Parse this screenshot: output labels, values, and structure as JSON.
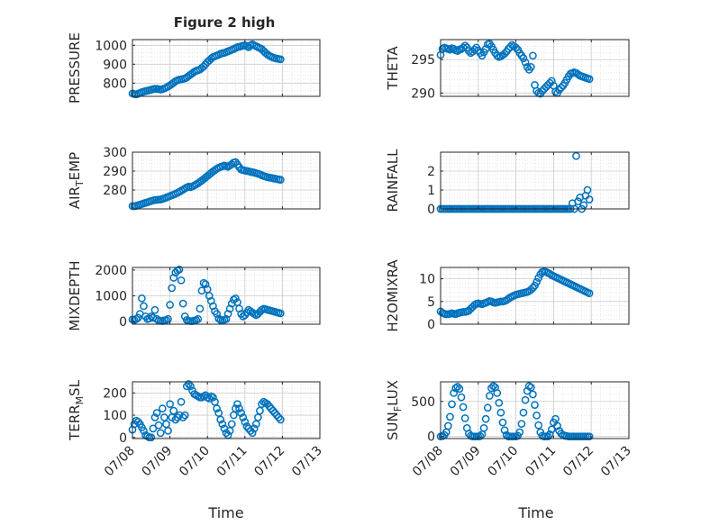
{
  "title": "Figure 2 high",
  "xlabel": "Time",
  "x_ticks": [
    "07/08",
    "07/09",
    "07/10",
    "07/11",
    "07/12",
    "07/13"
  ],
  "chart_data": [
    {
      "type": "scatter",
      "id": "pressure",
      "ylabel": "PRESSURE",
      "grid": true,
      "xlim": [
        0,
        5
      ],
      "ylim": [
        730,
        1030
      ],
      "yticks": [
        800,
        900,
        1000
      ],
      "x": [
        0.0,
        0.05,
        0.1,
        0.15,
        0.2,
        0.25,
        0.3,
        0.35,
        0.4,
        0.45,
        0.5,
        0.55,
        0.6,
        0.65,
        0.7,
        0.75,
        0.8,
        0.85,
        0.9,
        0.95,
        1.0,
        1.05,
        1.1,
        1.15,
        1.2,
        1.25,
        1.3,
        1.35,
        1.4,
        1.45,
        1.5,
        1.55,
        1.6,
        1.65,
        1.7,
        1.75,
        1.8,
        1.85,
        1.9,
        1.95,
        2.0,
        2.05,
        2.1,
        2.15,
        2.2,
        2.25,
        2.3,
        2.35,
        2.4,
        2.45,
        2.5,
        2.55,
        2.6,
        2.65,
        2.7,
        2.75,
        2.8,
        2.85,
        2.9,
        2.95,
        3.0,
        3.05,
        3.1,
        3.15,
        3.2,
        3.25,
        3.3,
        3.35,
        3.4,
        3.45,
        3.5,
        3.55,
        3.6,
        3.65,
        3.7,
        3.75,
        3.8,
        3.85,
        3.9,
        3.95
      ],
      "y": [
        745,
        742,
        740,
        744,
        748,
        752,
        755,
        758,
        760,
        762,
        765,
        768,
        770,
        770,
        768,
        766,
        768,
        772,
        776,
        782,
        788,
        795,
        802,
        810,
        815,
        818,
        820,
        822,
        825,
        830,
        838,
        845,
        852,
        860,
        865,
        868,
        872,
        880,
        888,
        900,
        912,
        920,
        930,
        938,
        942,
        946,
        950,
        955,
        958,
        960,
        964,
        968,
        972,
        976,
        980,
        985,
        990,
        992,
        995,
        998,
        1000,
        995,
        990,
        1000,
        1005,
        1000,
        995,
        990,
        985,
        980,
        970,
        960,
        952,
        945,
        940,
        935,
        932,
        930,
        928,
        926
      ]
    },
    {
      "type": "scatter",
      "id": "theta",
      "ylabel": "THETA",
      "grid": true,
      "xlim": [
        0,
        5
      ],
      "ylim": [
        289.5,
        298
      ],
      "yticks": [
        290,
        295
      ],
      "x": [
        0.0,
        0.05,
        0.1,
        0.15,
        0.2,
        0.25,
        0.3,
        0.35,
        0.4,
        0.45,
        0.5,
        0.55,
        0.6,
        0.65,
        0.7,
        0.75,
        0.8,
        0.85,
        0.9,
        0.95,
        1.0,
        1.05,
        1.1,
        1.15,
        1.2,
        1.25,
        1.3,
        1.35,
        1.4,
        1.45,
        1.5,
        1.55,
        1.6,
        1.65,
        1.7,
        1.75,
        1.8,
        1.85,
        1.9,
        1.95,
        2.0,
        2.05,
        2.1,
        2.15,
        2.2,
        2.25,
        2.3,
        2.35,
        2.4,
        2.45,
        2.5,
        2.55,
        2.6,
        2.65,
        2.7,
        2.75,
        2.8,
        2.85,
        2.9,
        2.95,
        3.0,
        3.05,
        3.1,
        3.15,
        3.2,
        3.25,
        3.3,
        3.35,
        3.4,
        3.45,
        3.5,
        3.55,
        3.6,
        3.65,
        3.7,
        3.75,
        3.8,
        3.85,
        3.9,
        3.95
      ],
      "y": [
        295.7,
        296.6,
        296.8,
        296.7,
        296.6,
        296.5,
        296.7,
        296.6,
        296.4,
        296.3,
        296.5,
        296.6,
        296.8,
        297.1,
        296.8,
        296.3,
        296.0,
        296.2,
        296.5,
        296.8,
        296.4,
        296.0,
        295.6,
        296.1,
        296.6,
        297.3,
        297.4,
        297.0,
        296.5,
        296.0,
        295.6,
        295.4,
        295.5,
        295.7,
        295.9,
        296.2,
        296.6,
        296.9,
        297.2,
        297.0,
        296.8,
        296.5,
        296.0,
        295.6,
        295.2,
        294.6,
        293.9,
        293.5,
        293.9,
        295.6,
        291.2,
        290.3,
        290.0,
        289.9,
        290.3,
        290.6,
        290.9,
        291.2,
        291.5,
        291.8,
        291.1,
        290.2,
        290.0,
        290.5,
        290.8,
        291.1,
        291.5,
        292.0,
        292.5,
        292.9,
        293.0,
        293.1,
        293.0,
        292.8,
        292.6,
        292.5,
        292.4,
        292.3,
        292.2,
        292.1
      ]
    },
    {
      "type": "scatter",
      "id": "air_temp",
      "ylabel": "AIR_TEMP",
      "grid": true,
      "xlim": [
        0,
        5
      ],
      "ylim": [
        270,
        300
      ],
      "yticks": [
        280,
        290,
        300
      ],
      "x": [
        0.0,
        0.05,
        0.1,
        0.15,
        0.2,
        0.25,
        0.3,
        0.35,
        0.4,
        0.45,
        0.5,
        0.55,
        0.6,
        0.65,
        0.7,
        0.75,
        0.8,
        0.85,
        0.9,
        0.95,
        1.0,
        1.05,
        1.1,
        1.15,
        1.2,
        1.25,
        1.3,
        1.35,
        1.4,
        1.45,
        1.5,
        1.55,
        1.6,
        1.65,
        1.7,
        1.75,
        1.8,
        1.85,
        1.9,
        1.95,
        2.0,
        2.05,
        2.1,
        2.15,
        2.2,
        2.25,
        2.3,
        2.35,
        2.4,
        2.45,
        2.5,
        2.55,
        2.6,
        2.65,
        2.7,
        2.75,
        2.8,
        2.85,
        2.9,
        2.95,
        3.0,
        3.05,
        3.1,
        3.15,
        3.2,
        3.25,
        3.3,
        3.35,
        3.4,
        3.45,
        3.5,
        3.55,
        3.6,
        3.65,
        3.7,
        3.75,
        3.8,
        3.85,
        3.9,
        3.95
      ],
      "y": [
        271.5,
        271.4,
        271.6,
        272.0,
        272.3,
        272.6,
        272.9,
        273.2,
        273.5,
        273.9,
        274.2,
        274.5,
        274.7,
        274.8,
        274.9,
        275.0,
        275.3,
        275.6,
        276.0,
        276.4,
        276.8,
        277.2,
        277.6,
        278.0,
        278.5,
        279.0,
        279.6,
        280.2,
        280.8,
        281.4,
        281.8,
        281.5,
        281.9,
        282.4,
        283.0,
        283.6,
        284.3,
        285.0,
        285.8,
        286.6,
        287.4,
        288.2,
        289.0,
        289.8,
        290.5,
        291.2,
        291.8,
        292.2,
        292.6,
        292.9,
        292.6,
        292.3,
        293.0,
        293.6,
        294.5,
        294.8,
        293.5,
        292.0,
        290.8,
        290.5,
        290.3,
        290.1,
        289.9,
        289.6,
        289.4,
        289.2,
        288.9,
        288.6,
        288.3,
        287.8,
        287.4,
        287.1,
        286.8,
        286.6,
        286.4,
        286.2,
        286.0,
        285.8,
        285.6,
        285.4
      ]
    },
    {
      "type": "scatter",
      "id": "rainfall",
      "ylabel": "RAINFALL",
      "grid": true,
      "xlim": [
        0,
        5
      ],
      "ylim": [
        0,
        3
      ],
      "yticks": [
        0,
        1,
        2
      ],
      "x": [
        0.0,
        0.05,
        0.1,
        0.15,
        0.2,
        0.25,
        0.3,
        0.35,
        0.4,
        0.45,
        0.5,
        0.55,
        0.6,
        0.65,
        0.7,
        0.75,
        0.8,
        0.85,
        0.9,
        0.95,
        1.0,
        1.05,
        1.1,
        1.15,
        1.2,
        1.25,
        1.3,
        1.35,
        1.4,
        1.45,
        1.5,
        1.55,
        1.6,
        1.65,
        1.7,
        1.75,
        1.8,
        1.85,
        1.9,
        1.95,
        2.0,
        2.05,
        2.1,
        2.15,
        2.2,
        2.25,
        2.3,
        2.35,
        2.4,
        2.45,
        2.5,
        2.55,
        2.6,
        2.65,
        2.7,
        2.75,
        2.8,
        2.85,
        2.9,
        2.95,
        3.0,
        3.05,
        3.1,
        3.15,
        3.2,
        3.25,
        3.3,
        3.35,
        3.4,
        3.45,
        3.5,
        3.55,
        3.6,
        3.65,
        3.7,
        3.75,
        3.8,
        3.85,
        3.9,
        3.95
      ],
      "y": [
        0,
        0,
        0,
        0,
        0,
        0,
        0,
        0,
        0,
        0,
        0,
        0,
        0,
        0,
        0,
        0,
        0,
        0,
        0,
        0,
        0,
        0,
        0,
        0,
        0,
        0,
        0,
        0,
        0,
        0,
        0,
        0,
        0,
        0,
        0,
        0,
        0,
        0,
        0,
        0,
        0,
        0,
        0,
        0,
        0,
        0,
        0,
        0,
        0,
        0,
        0,
        0,
        0,
        0,
        0,
        0,
        0,
        0,
        0,
        0,
        0,
        0,
        0,
        0,
        0,
        0,
        0,
        0,
        0,
        0,
        0.3,
        0.0,
        2.8,
        0.4,
        0.6,
        0.0,
        0.2,
        0.7,
        1.0,
        0.5
      ]
    },
    {
      "type": "scatter",
      "id": "mixdepth",
      "ylabel": "MIXDEPTH",
      "grid": true,
      "xlim": [
        0,
        5
      ],
      "ylim": [
        -100,
        2100
      ],
      "yticks": [
        0,
        1000,
        2000
      ],
      "x": [
        0.0,
        0.05,
        0.1,
        0.15,
        0.2,
        0.25,
        0.3,
        0.35,
        0.4,
        0.45,
        0.5,
        0.55,
        0.6,
        0.65,
        0.7,
        0.75,
        0.8,
        0.85,
        0.9,
        0.95,
        1.0,
        1.05,
        1.1,
        1.15,
        1.2,
        1.25,
        1.3,
        1.35,
        1.4,
        1.45,
        1.5,
        1.55,
        1.6,
        1.65,
        1.7,
        1.75,
        1.8,
        1.85,
        1.9,
        1.95,
        2.0,
        2.05,
        2.1,
        2.15,
        2.2,
        2.25,
        2.3,
        2.35,
        2.4,
        2.45,
        2.5,
        2.55,
        2.6,
        2.65,
        2.7,
        2.75,
        2.8,
        2.85,
        2.9,
        2.95,
        3.0,
        3.05,
        3.1,
        3.15,
        3.2,
        3.25,
        3.3,
        3.35,
        3.4,
        3.45,
        3.5,
        3.55,
        3.6,
        3.65,
        3.7,
        3.75,
        3.8,
        3.85,
        3.9,
        3.95
      ],
      "y": [
        80,
        60,
        100,
        150,
        300,
        900,
        600,
        200,
        100,
        120,
        200,
        150,
        450,
        100,
        40,
        30,
        20,
        50,
        60,
        100,
        650,
        1300,
        1700,
        1900,
        1980,
        2020,
        1600,
        700,
        200,
        60,
        30,
        20,
        20,
        40,
        60,
        100,
        500,
        1200,
        1500,
        1450,
        1250,
        1000,
        800,
        600,
        400,
        300,
        120,
        60,
        50,
        70,
        100,
        300,
        500,
        700,
        850,
        900,
        750,
        500,
        300,
        200,
        250,
        350,
        450,
        400,
        350,
        300,
        250,
        300,
        380,
        450,
        500,
        480,
        460,
        440,
        420,
        400,
        380,
        360,
        340,
        320
      ]
    },
    {
      "type": "scatter",
      "id": "h2omixra",
      "ylabel": "H2OMIXRA",
      "grid": true,
      "xlim": [
        0,
        5
      ],
      "ylim": [
        0,
        12.5
      ],
      "yticks": [
        0,
        5,
        10
      ],
      "x": [
        0.0,
        0.05,
        0.1,
        0.15,
        0.2,
        0.25,
        0.3,
        0.35,
        0.4,
        0.45,
        0.5,
        0.55,
        0.6,
        0.65,
        0.7,
        0.75,
        0.8,
        0.85,
        0.9,
        0.95,
        1.0,
        1.05,
        1.1,
        1.15,
        1.2,
        1.25,
        1.3,
        1.35,
        1.4,
        1.45,
        1.5,
        1.55,
        1.6,
        1.65,
        1.7,
        1.75,
        1.8,
        1.85,
        1.9,
        1.95,
        2.0,
        2.05,
        2.1,
        2.15,
        2.2,
        2.25,
        2.3,
        2.35,
        2.4,
        2.45,
        2.5,
        2.55,
        2.6,
        2.65,
        2.7,
        2.75,
        2.8,
        2.85,
        2.9,
        2.95,
        3.0,
        3.05,
        3.1,
        3.15,
        3.2,
        3.25,
        3.3,
        3.35,
        3.4,
        3.45,
        3.5,
        3.55,
        3.6,
        3.65,
        3.7,
        3.75,
        3.8,
        3.85,
        3.9,
        3.95
      ],
      "y": [
        2.8,
        2.5,
        2.3,
        2.2,
        2.2,
        2.3,
        2.4,
        2.3,
        2.2,
        2.4,
        2.5,
        2.6,
        2.7,
        2.7,
        2.8,
        3.0,
        3.4,
        3.8,
        4.2,
        4.5,
        4.6,
        4.5,
        4.4,
        4.6,
        4.7,
        4.9,
        5.1,
        5.0,
        4.8,
        4.7,
        4.8,
        4.9,
        5.0,
        5.0,
        5.1,
        5.3,
        5.6,
        5.9,
        6.1,
        6.3,
        6.5,
        6.6,
        6.7,
        6.8,
        6.9,
        7.0,
        7.1,
        7.3,
        7.6,
        8.0,
        8.5,
        9.3,
        10.2,
        11.0,
        11.5,
        11.6,
        11.5,
        11.3,
        11.1,
        10.8,
        10.6,
        10.4,
        10.2,
        10.0,
        9.8,
        9.6,
        9.4,
        9.2,
        9.0,
        8.8,
        8.6,
        8.4,
        8.2,
        8.0,
        7.8,
        7.6,
        7.4,
        7.2,
        7.0,
        6.8
      ]
    },
    {
      "type": "scatter",
      "id": "terr_msl",
      "ylabel": "TERR_MSL",
      "grid": true,
      "xlim": [
        0,
        5
      ],
      "ylim": [
        -5,
        250
      ],
      "yticks": [
        0,
        100,
        200
      ],
      "x": [
        0.0,
        0.05,
        0.1,
        0.15,
        0.2,
        0.25,
        0.3,
        0.35,
        0.4,
        0.45,
        0.5,
        0.55,
        0.6,
        0.65,
        0.7,
        0.75,
        0.8,
        0.85,
        0.9,
        0.95,
        1.0,
        1.05,
        1.1,
        1.15,
        1.2,
        1.25,
        1.3,
        1.35,
        1.4,
        1.45,
        1.5,
        1.55,
        1.6,
        1.65,
        1.7,
        1.75,
        1.8,
        1.85,
        1.9,
        1.95,
        2.0,
        2.05,
        2.1,
        2.15,
        2.2,
        2.25,
        2.3,
        2.35,
        2.4,
        2.45,
        2.5,
        2.55,
        2.6,
        2.65,
        2.7,
        2.75,
        2.8,
        2.85,
        2.9,
        2.95,
        3.0,
        3.05,
        3.1,
        3.15,
        3.2,
        3.25,
        3.3,
        3.35,
        3.4,
        3.45,
        3.5,
        3.55,
        3.6,
        3.65,
        3.7,
        3.75,
        3.8,
        3.85,
        3.9,
        3.95
      ],
      "y": [
        35,
        60,
        75,
        70,
        60,
        45,
        30,
        10,
        5,
        0,
        0,
        40,
        90,
        110,
        55,
        20,
        130,
        90,
        60,
        30,
        150,
        90,
        120,
        80,
        90,
        100,
        160,
        90,
        100,
        230,
        240,
        230,
        210,
        195,
        190,
        185,
        180,
        180,
        185,
        190,
        180,
        175,
        185,
        180,
        160,
        130,
        110,
        80,
        60,
        40,
        20,
        10,
        30,
        60,
        100,
        130,
        150,
        130,
        110,
        90,
        70,
        50,
        40,
        30,
        20,
        40,
        60,
        90,
        120,
        150,
        160,
        155,
        150,
        140,
        130,
        120,
        110,
        100,
        90,
        80
      ]
    },
    {
      "type": "scatter",
      "id": "sun_flux",
      "ylabel": "SUN_FLUX",
      "grid": true,
      "xlim": [
        0,
        5
      ],
      "ylim": [
        -30,
        780
      ],
      "yticks": [
        0,
        500
      ],
      "x": [
        0.0,
        0.05,
        0.1,
        0.15,
        0.2,
        0.25,
        0.3,
        0.35,
        0.4,
        0.45,
        0.5,
        0.55,
        0.6,
        0.65,
        0.7,
        0.75,
        0.8,
        0.85,
        0.9,
        0.95,
        1.0,
        1.05,
        1.1,
        1.15,
        1.2,
        1.25,
        1.3,
        1.35,
        1.4,
        1.45,
        1.5,
        1.55,
        1.6,
        1.65,
        1.7,
        1.75,
        1.8,
        1.85,
        1.9,
        1.95,
        2.0,
        2.05,
        2.1,
        2.15,
        2.2,
        2.25,
        2.3,
        2.35,
        2.4,
        2.45,
        2.5,
        2.55,
        2.6,
        2.65,
        2.7,
        2.75,
        2.8,
        2.85,
        2.9,
        2.95,
        3.0,
        3.05,
        3.1,
        3.15,
        3.2,
        3.25,
        3.3,
        3.35,
        3.4,
        3.45,
        3.5,
        3.55,
        3.6,
        3.65,
        3.7,
        3.75,
        3.8,
        3.85,
        3.9,
        3.95
      ],
      "y": [
        0,
        5,
        20,
        60,
        150,
        280,
        460,
        620,
        690,
        710,
        680,
        560,
        420,
        260,
        120,
        40,
        10,
        0,
        0,
        0,
        0,
        5,
        30,
        120,
        250,
        410,
        580,
        690,
        720,
        700,
        620,
        480,
        340,
        200,
        90,
        20,
        0,
        0,
        0,
        0,
        0,
        10,
        60,
        180,
        340,
        520,
        650,
        720,
        700,
        600,
        450,
        300,
        160,
        60,
        10,
        0,
        0,
        0,
        30,
        100,
        200,
        250,
        150,
        80,
        40,
        20,
        10,
        5,
        0,
        0,
        0,
        0,
        0,
        0,
        0,
        0,
        0,
        0,
        0,
        0
      ]
    }
  ]
}
